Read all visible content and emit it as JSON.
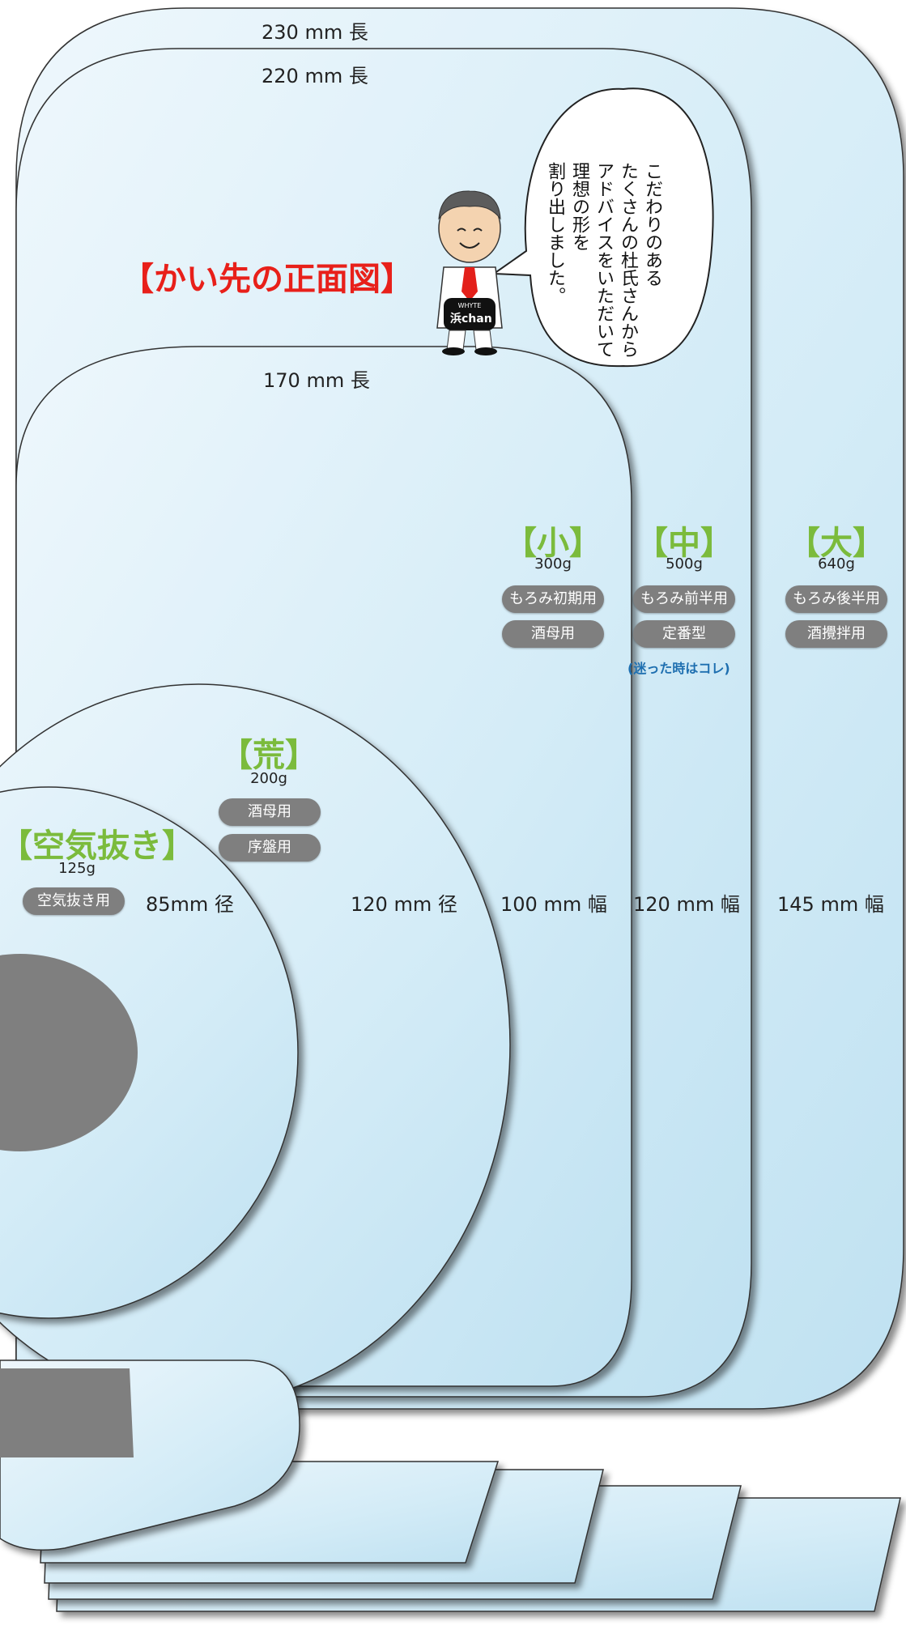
{
  "title": "【かい先の正面図】",
  "dimensions": {
    "len230": "230 mm 長",
    "len220": "220 mm 長",
    "len170": "170 mm 長",
    "dia85": "85mm 径",
    "dia120": "120 mm 径",
    "w100": "100 mm 幅",
    "w120": "120 mm 幅",
    "w145": "145 mm 幅"
  },
  "sizes": {
    "small": {
      "label": "【小】",
      "weight": "300g",
      "uses": [
        "もろみ初期用",
        "酒母用"
      ]
    },
    "medium": {
      "label": "【中】",
      "weight": "500g",
      "uses": [
        "もろみ前半用",
        "定番型"
      ],
      "note": "(迷った時はコレ)"
    },
    "large": {
      "label": "【大】",
      "weight": "640g",
      "uses": [
        "もろみ後半用",
        "酒攪拌用"
      ]
    },
    "rough": {
      "label": "【荒】",
      "weight": "200g",
      "uses": [
        "酒母用",
        "序盤用"
      ]
    },
    "air": {
      "label": "【空気抜き】",
      "weight": "125g",
      "uses": [
        "空気抜き用"
      ]
    }
  },
  "speech": "こだわりのある\nたくさんの杜氏さんから\nアドバイスをいただいて\n理想の形を\n割り出しました。",
  "mascot": {
    "brand": "WHYTE",
    "name": "浜chan"
  },
  "colors": {
    "head_green": "#7bbb3c",
    "title_red": "#e8201a",
    "pill_gray": "#7f7f7f",
    "note_blue": "#1e6fb0"
  }
}
